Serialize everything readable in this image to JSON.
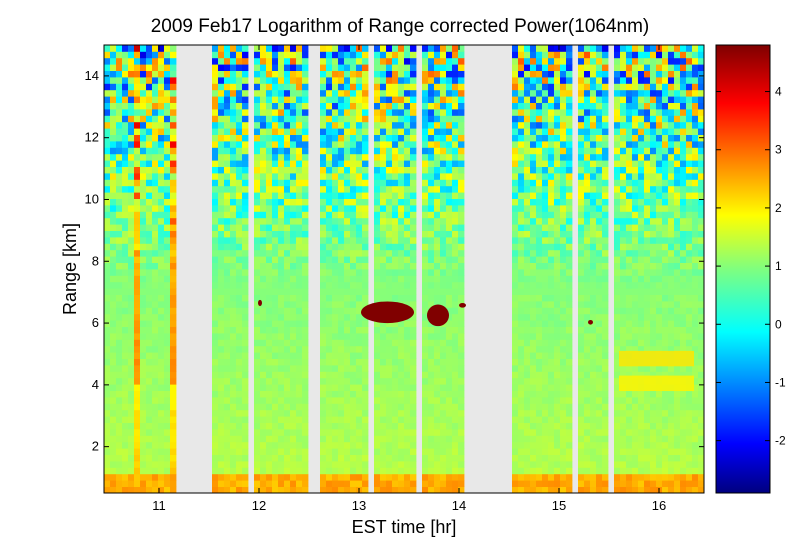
{
  "chart_data": {
    "type": "heatmap",
    "title": "2009 Feb17  Logarithm of Range corrected Power(1064nm)",
    "xlabel": "EST time [hr]",
    "ylabel": "Range [km]",
    "xlim": [
      10.45,
      16.45
    ],
    "ylim": [
      0.5,
      15.0
    ],
    "xticks": [
      11,
      12,
      13,
      14,
      15,
      16
    ],
    "yticks": [
      2,
      4,
      6,
      8,
      10,
      12,
      14
    ],
    "colorbar": {
      "range": [
        -2.9,
        4.8
      ],
      "ticks": [
        -2,
        -1,
        0,
        1,
        2,
        3,
        4
      ],
      "colormap": "jet"
    },
    "data_gaps_hr": [
      [
        10.79,
        10.81
      ],
      [
        11.17,
        11.51
      ],
      [
        11.91,
        11.96
      ],
      [
        12.49,
        12.59
      ],
      [
        13.1,
        13.12
      ],
      [
        13.6,
        13.62
      ],
      [
        14.07,
        14.53
      ],
      [
        15.11,
        15.19
      ],
      [
        15.49,
        15.57
      ]
    ],
    "strong_signal_columns_hr": [
      10.77,
      11.14
    ],
    "boundary_layer_top_km": 1.2,
    "cloud_features": [
      {
        "x": [
          13.02,
          13.55
        ],
        "y_km": [
          6.0,
          6.7
        ],
        "value": 4.8
      },
      {
        "x": [
          13.68,
          13.9
        ],
        "y_km": [
          5.9,
          6.6
        ],
        "value": 4.8
      },
      {
        "x": [
          11.99,
          12.03
        ],
        "y_km": [
          6.55,
          6.75
        ],
        "value": 4.8
      },
      {
        "x": [
          14.0,
          14.07
        ],
        "y_km": [
          6.5,
          6.65
        ],
        "value": 4.8
      },
      {
        "x": [
          15.29,
          15.34
        ],
        "y_km": [
          5.95,
          6.1
        ],
        "value": 4.8
      }
    ],
    "aerosol_layers_km": [
      {
        "x": [
          15.6,
          16.35
        ],
        "y_km": [
          4.6,
          5.1
        ],
        "value": 2.1
      },
      {
        "x": [
          15.6,
          16.35
        ],
        "y_km": [
          3.8,
          4.3
        ],
        "value": 2.0
      }
    ]
  }
}
